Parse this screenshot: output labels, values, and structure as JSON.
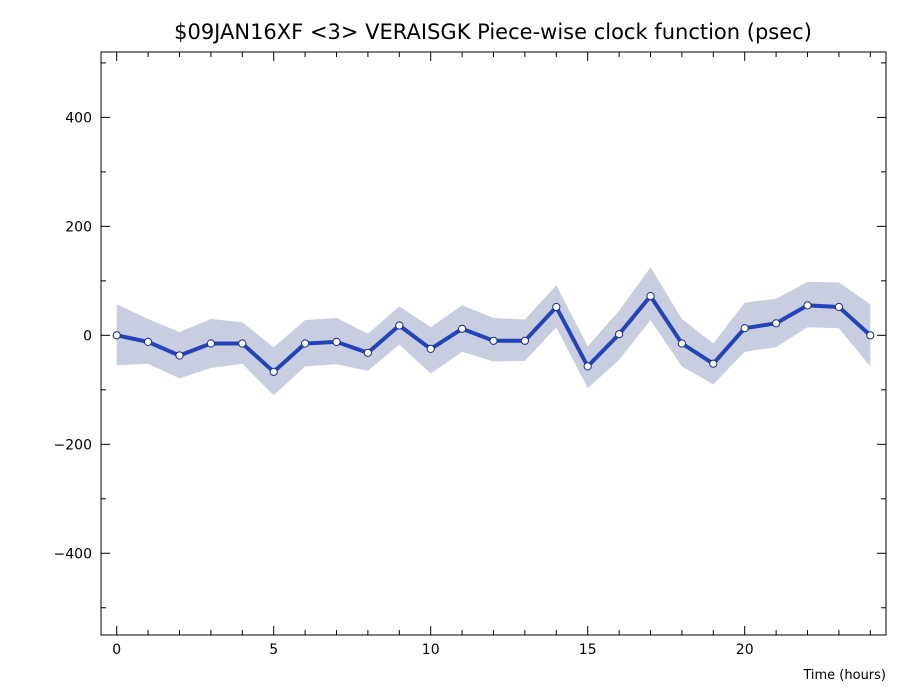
{
  "chart_data": {
    "type": "line",
    "title": "$09JAN16XF <3>  VERAISGK  Piece-wise clock function (psec)",
    "xlabel": "Time (hours)",
    "ylabel": "",
    "xlim": [
      -0.5,
      24.5
    ],
    "ylim": [
      -550,
      520
    ],
    "x_ticks": [
      0,
      5,
      10,
      15,
      20
    ],
    "y_ticks": [
      400,
      200,
      0,
      -200,
      -400
    ],
    "x_tick_labels": [
      "0",
      "5",
      "10",
      "15",
      "20"
    ],
    "y_tick_labels": [
      "400",
      "200",
      "0",
      "−200",
      "−400"
    ],
    "grid": false,
    "series": [
      {
        "x": [
          0,
          1,
          2,
          3,
          4,
          5,
          6,
          7,
          8,
          9,
          10,
          11,
          12,
          13,
          14,
          15,
          16,
          17,
          18,
          19,
          20,
          21,
          22,
          23,
          24
        ],
        "values": [
          0,
          -12,
          -37,
          -15,
          -15,
          -67,
          -15,
          -12,
          -32,
          18,
          -25,
          12,
          -10,
          -10,
          52,
          -57,
          2,
          72,
          -15,
          -52,
          13,
          22,
          55,
          52,
          0
        ],
        "band": [
          [
            -55,
            57
          ],
          [
            -52,
            30
          ],
          [
            -79,
            6
          ],
          [
            -60,
            30
          ],
          [
            -52,
            24
          ],
          [
            -110,
            -22
          ],
          [
            -57,
            28
          ],
          [
            -53,
            32
          ],
          [
            -65,
            3
          ],
          [
            -17,
            53
          ],
          [
            -70,
            15
          ],
          [
            -30,
            55
          ],
          [
            -48,
            32
          ],
          [
            -47,
            29
          ],
          [
            15,
            92
          ],
          [
            -97,
            -20
          ],
          [
            -45,
            45
          ],
          [
            28,
            125
          ],
          [
            -57,
            30
          ],
          [
            -90,
            -15
          ],
          [
            -30,
            60
          ],
          [
            -22,
            67
          ],
          [
            15,
            98
          ],
          [
            13,
            97
          ],
          [
            -57,
            57
          ]
        ]
      }
    ],
    "colors": {
      "line": "#2244bb",
      "band": "#c8cde0",
      "marker_fill": "#ffffff",
      "marker_edge": "#1a2d80"
    }
  }
}
